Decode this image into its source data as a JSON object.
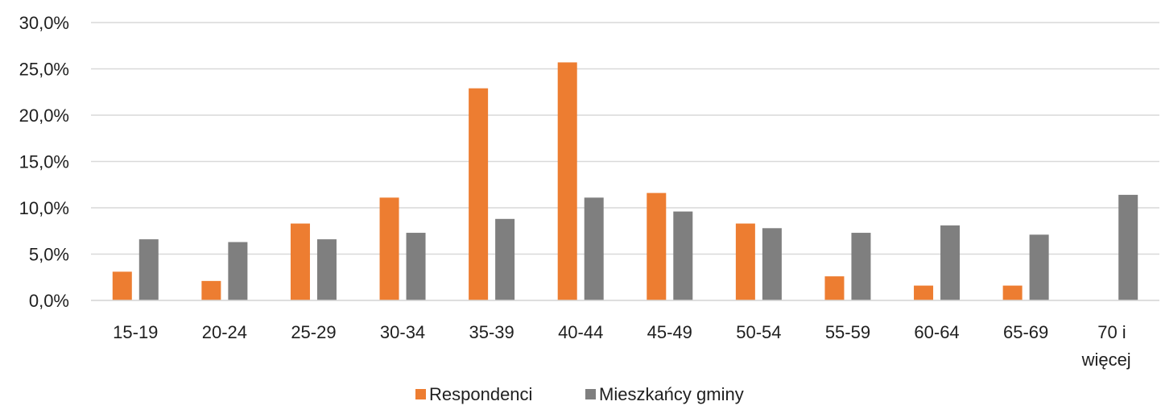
{
  "chart_data": {
    "type": "bar",
    "title": "",
    "xlabel": "",
    "ylabel": "",
    "categories": [
      [
        "15-19"
      ],
      [
        "20-24"
      ],
      [
        "25-29"
      ],
      [
        "30-34"
      ],
      [
        "35-39"
      ],
      [
        "40-44"
      ],
      [
        "45-49"
      ],
      [
        "50-54"
      ],
      [
        "55-59"
      ],
      [
        "60-64"
      ],
      [
        "65-69"
      ],
      [
        "70 i",
        "więcej"
      ]
    ],
    "series": [
      {
        "name": "Respondenci",
        "color": "#ED7D31",
        "values": [
          3.1,
          2.1,
          8.3,
          11.1,
          22.9,
          25.7,
          11.6,
          8.3,
          2.6,
          1.6,
          1.6,
          0.0
        ]
      },
      {
        "name": "Mieszkańcy gminy",
        "color": "#7F7F7F",
        "values": [
          6.6,
          6.3,
          6.6,
          7.3,
          8.8,
          11.1,
          9.6,
          7.8,
          7.3,
          8.1,
          7.1,
          11.4
        ]
      }
    ],
    "ylim": [
      0,
      30
    ],
    "yticks": [
      "0,0%",
      "5,0%",
      "10,0%",
      "15,0%",
      "20,0%",
      "25,0%",
      "30,0%"
    ],
    "grid": true,
    "legend_position": "bottom"
  }
}
